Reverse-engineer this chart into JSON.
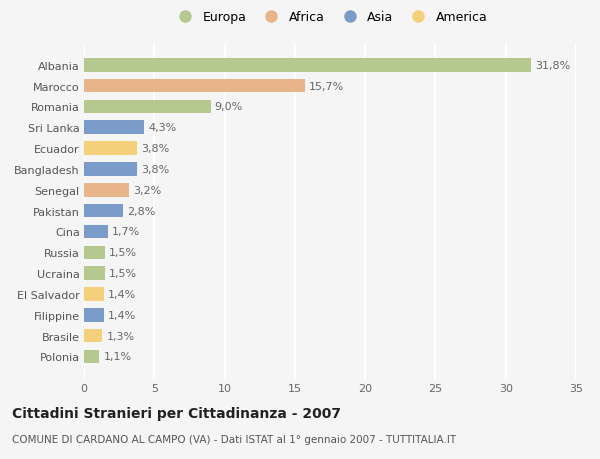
{
  "countries": [
    "Albania",
    "Marocco",
    "Romania",
    "Sri Lanka",
    "Ecuador",
    "Bangladesh",
    "Senegal",
    "Pakistan",
    "Cina",
    "Russia",
    "Ucraina",
    "El Salvador",
    "Filippine",
    "Brasile",
    "Polonia"
  ],
  "values": [
    31.8,
    15.7,
    9.0,
    4.3,
    3.8,
    3.8,
    3.2,
    2.8,
    1.7,
    1.5,
    1.5,
    1.4,
    1.4,
    1.3,
    1.1
  ],
  "labels": [
    "31,8%",
    "15,7%",
    "9,0%",
    "4,3%",
    "3,8%",
    "3,8%",
    "3,2%",
    "2,8%",
    "1,7%",
    "1,5%",
    "1,5%",
    "1,4%",
    "1,4%",
    "1,3%",
    "1,1%"
  ],
  "colors": [
    "#b5c98e",
    "#e8b48a",
    "#b5c98e",
    "#7b9bc8",
    "#f5d07a",
    "#7b9bc8",
    "#e8b48a",
    "#7b9bc8",
    "#7b9bc8",
    "#b5c98e",
    "#b5c98e",
    "#f5d07a",
    "#7b9bc8",
    "#f5d07a",
    "#b5c98e"
  ],
  "legend_labels": [
    "Europa",
    "Africa",
    "Asia",
    "America"
  ],
  "legend_colors": [
    "#b5c98e",
    "#e8b48a",
    "#7b9bc8",
    "#f5d07a"
  ],
  "title": "Cittadini Stranieri per Cittadinanza - 2007",
  "subtitle": "COMUNE DI CARDANO AL CAMPO (VA) - Dati ISTAT al 1° gennaio 2007 - TUTTITALIA.IT",
  "xlim": [
    0,
    35
  ],
  "xticks": [
    0,
    5,
    10,
    15,
    20,
    25,
    30,
    35
  ],
  "background_color": "#f5f5f5",
  "grid_color": "#ffffff",
  "bar_height": 0.65,
  "label_fontsize": 8,
  "tick_fontsize": 8,
  "title_fontsize": 10,
  "subtitle_fontsize": 7.5,
  "legend_fontsize": 9
}
